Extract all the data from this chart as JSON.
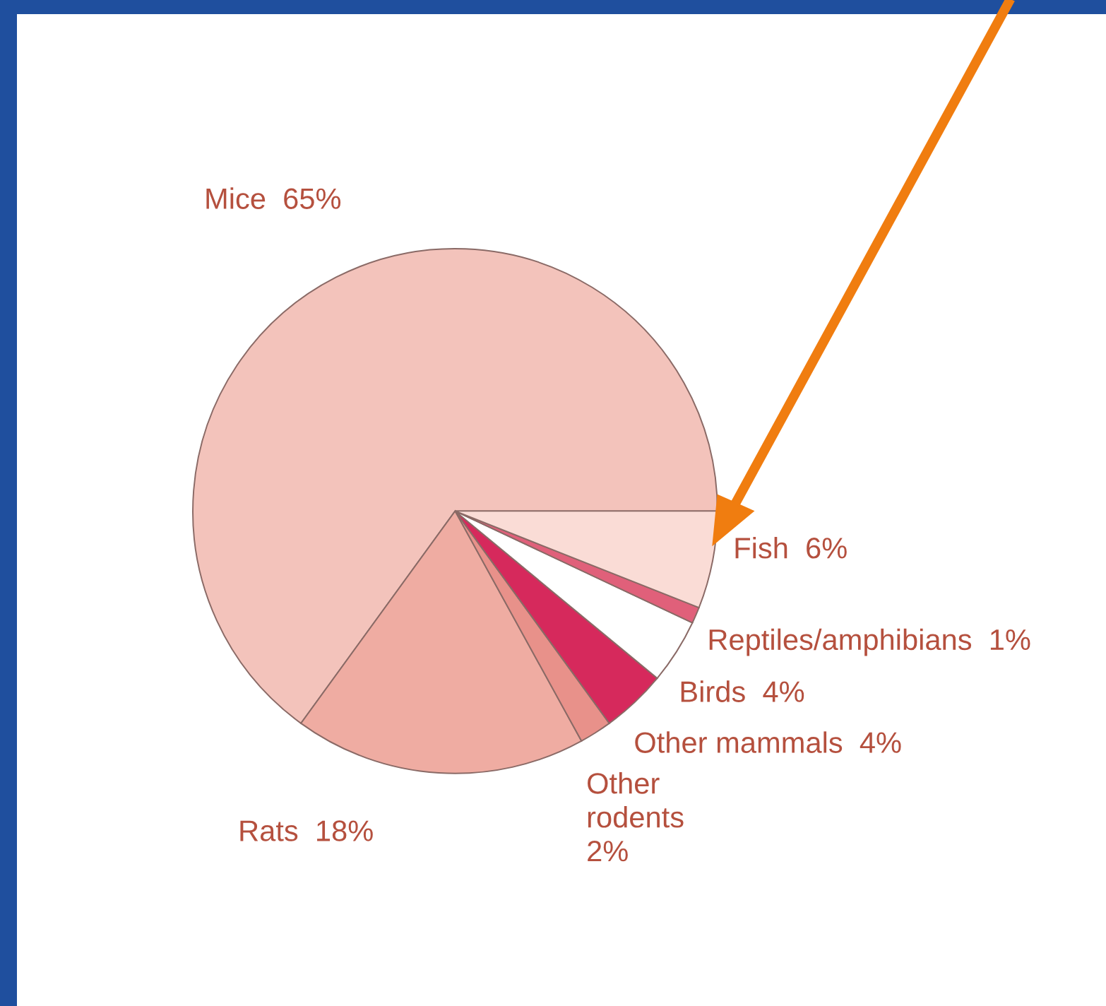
{
  "chart_data": {
    "type": "pie",
    "categories": [
      "Mice",
      "Rats",
      "Other rodents",
      "Other mammals",
      "Birds",
      "Reptiles/amphibians",
      "Fish"
    ],
    "values": [
      65,
      18,
      2,
      4,
      4,
      1,
      6
    ],
    "value_labels": [
      "65%",
      "18%",
      "2%",
      "4%",
      "4%",
      "1%",
      "6%"
    ],
    "colors": [
      "#f3c3bb",
      "#efaca2",
      "#e8918a",
      "#d6295c",
      "#ffffff",
      "#e0607a",
      "#fadcd6"
    ],
    "legend": false
  }
}
